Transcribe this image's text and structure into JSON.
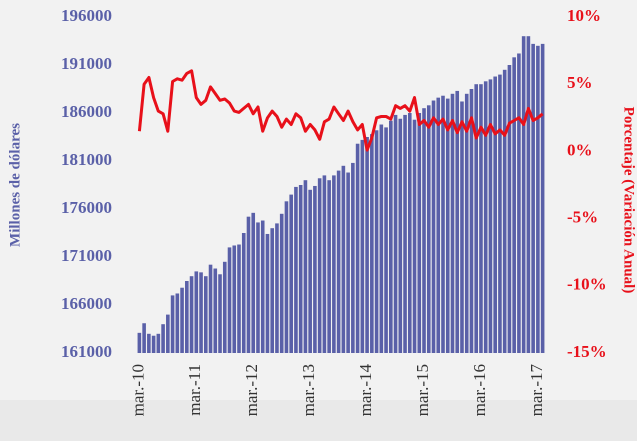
{
  "chart_data": {
    "type": "bar_line",
    "categories": [
      "mar.-10",
      null,
      null,
      null,
      null,
      null,
      null,
      null,
      null,
      null,
      null,
      null,
      "mar.-11",
      null,
      null,
      null,
      null,
      null,
      null,
      null,
      null,
      null,
      null,
      null,
      "mar.-12",
      null,
      null,
      null,
      null,
      null,
      null,
      null,
      null,
      null,
      null,
      null,
      "mar.-13",
      null,
      null,
      null,
      null,
      null,
      null,
      null,
      null,
      null,
      null,
      null,
      "mar.-14",
      null,
      null,
      null,
      null,
      null,
      null,
      null,
      null,
      null,
      null,
      null,
      "mar.-15",
      null,
      null,
      null,
      null,
      null,
      null,
      null,
      null,
      null,
      null,
      null,
      "mar.-16",
      null,
      null,
      null,
      null,
      null,
      null,
      null,
      null,
      null,
      null,
      null,
      "mar.-17",
      null
    ],
    "ylabel": "Millones de dólares",
    "y2label": "Porcentaje (Variación Anual)",
    "ylim": [
      161000,
      196000
    ],
    "yticks": [
      161000,
      166000,
      171000,
      176000,
      181000,
      186000,
      191000,
      196000
    ],
    "y2lim": [
      -15,
      10
    ],
    "y2ticks": [
      {
        "value": -15,
        "label": "-15%"
      },
      {
        "value": -10,
        "label": "-10%"
      },
      {
        "value": -5,
        "label": "-5%"
      },
      {
        "value": 0,
        "label": "0%"
      },
      {
        "value": 5,
        "label": "5%"
      },
      {
        "value": 10,
        "label": "10%"
      }
    ],
    "series": [
      {
        "color": "#5a60a8",
        "values": [
          163100,
          164100,
          163000,
          162800,
          163000,
          164000,
          165000,
          167000,
          167200,
          167800,
          168500,
          169000,
          169500,
          169400,
          169000,
          170200,
          169800,
          169200,
          170500,
          172000,
          172200,
          172300,
          173500,
          175200,
          175600,
          174600,
          174800,
          173400,
          174000,
          174500,
          175500,
          176800,
          177500,
          178300,
          178500,
          179000,
          178000,
          178400,
          179200,
          179500,
          179000,
          179500,
          180000,
          180500,
          179800,
          180800,
          182800,
          183200,
          183500,
          183800,
          184200,
          184800,
          184500,
          185200,
          185800,
          185400,
          185800,
          186000,
          185300,
          186000,
          186500,
          186800,
          187300,
          187600,
          187800,
          187500,
          188000,
          188300,
          187200,
          188000,
          188500,
          189000,
          189000,
          189300,
          189500,
          189800,
          190000,
          190500,
          191000,
          191800,
          192200,
          194000,
          194000,
          193200,
          193000,
          193200
        ]
      },
      {
        "color": "#e8101a",
        "axis": "y2",
        "values": [
          1.5,
          5.0,
          5.5,
          4.0,
          3.0,
          2.8,
          1.5,
          5.2,
          5.4,
          5.3,
          5.8,
          6.0,
          4.0,
          3.5,
          3.8,
          4.8,
          4.3,
          3.8,
          3.9,
          3.6,
          3.0,
          2.9,
          3.2,
          3.5,
          2.8,
          3.3,
          1.5,
          2.5,
          3.0,
          2.6,
          1.8,
          2.4,
          2.0,
          2.8,
          2.5,
          1.5,
          2.0,
          1.6,
          0.9,
          2.2,
          2.4,
          3.3,
          2.8,
          2.3,
          3.0,
          2.2,
          1.6,
          2.0,
          0.1,
          1.0,
          2.5,
          2.6,
          2.6,
          2.4,
          3.4,
          3.2,
          3.4,
          3.0,
          4.0,
          2.0,
          2.3,
          1.8,
          2.5,
          2.0,
          2.4,
          1.6,
          2.3,
          1.4,
          2.2,
          1.5,
          2.5,
          1.0,
          1.8,
          1.2,
          2.0,
          1.3,
          1.6,
          1.2,
          2.1,
          2.3,
          2.5,
          2.0,
          3.2,
          2.3,
          2.5,
          2.8
        ]
      }
    ]
  }
}
